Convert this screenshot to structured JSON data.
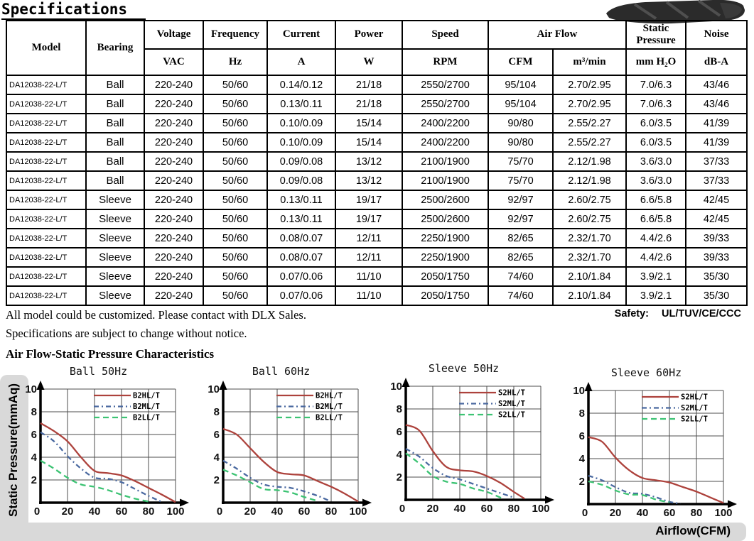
{
  "page": {
    "title": "Specifications",
    "notes": [
      "All model could be customized. Please contact with DLX Sales.",
      "Specifications are subject to change without notice."
    ],
    "safety_label": "Safety:",
    "safety_value": "UL/TUV/CE/CCC",
    "section2_title": "Air Flow-Static Pressure Characteristics",
    "y_axis_label": "Static Pressure(mmAq)",
    "x_axis_label": "Airflow(CFM)"
  },
  "table": {
    "header": {
      "model": "Model",
      "bearing": "Bearing",
      "voltage": "Voltage",
      "voltage_unit": "VAC",
      "frequency": "Frequency",
      "frequency_unit": "Hz",
      "current": "Current",
      "current_unit": "A",
      "power": "Power",
      "power_unit": "W",
      "speed": "Speed",
      "speed_unit": "RPM",
      "airflow": "Air Flow",
      "airflow_unit_cfm": "CFM",
      "airflow_unit_m3": "m³/min",
      "static_pressure": "Static Pressure",
      "static_pressure_unit": "mm H₂O",
      "noise": "Noise",
      "noise_unit": "dB-A"
    },
    "rows": [
      [
        "DA12038-22-L/T",
        "Ball",
        "220-240",
        "50/60",
        "0.14/0.12",
        "21/18",
        "2550/2700",
        "95/104",
        "2.70/2.95",
        "7.0/6.3",
        "43/46"
      ],
      [
        "DA12038-22-L/T",
        "Ball",
        "220-240",
        "50/60",
        "0.13/0.11",
        "21/18",
        "2550/2700",
        "95/104",
        "2.70/2.95",
        "7.0/6.3",
        "43/46"
      ],
      [
        "DA12038-22-L/T",
        "Ball",
        "220-240",
        "50/60",
        "0.10/0.09",
        "15/14",
        "2400/2200",
        "90/80",
        "2.55/2.27",
        "6.0/3.5",
        "41/39"
      ],
      [
        "DA12038-22-L/T",
        "Ball",
        "220-240",
        "50/60",
        "0.10/0.09",
        "15/14",
        "2400/2200",
        "90/80",
        "2.55/2.27",
        "6.0/3.5",
        "41/39"
      ],
      [
        "DA12038-22-L/T",
        "Ball",
        "220-240",
        "50/60",
        "0.09/0.08",
        "13/12",
        "2100/1900",
        "75/70",
        "2.12/1.98",
        "3.6/3.0",
        "37/33"
      ],
      [
        "DA12038-22-L/T",
        "Ball",
        "220-240",
        "50/60",
        "0.09/0.08",
        "13/12",
        "2100/1900",
        "75/70",
        "2.12/1.98",
        "3.6/3.0",
        "37/33"
      ],
      [
        "DA12038-22-L/T",
        "Sleeve",
        "220-240",
        "50/60",
        "0.13/0.11",
        "19/17",
        "2500/2600",
        "92/97",
        "2.60/2.75",
        "6.6/5.8",
        "42/45"
      ],
      [
        "DA12038-22-L/T",
        "Sleeve",
        "220-240",
        "50/60",
        "0.13/0.11",
        "19/17",
        "2500/2600",
        "92/97",
        "2.60/2.75",
        "6.6/5.8",
        "42/45"
      ],
      [
        "DA12038-22-L/T",
        "Sleeve",
        "220-240",
        "50/60",
        "0.08/0.07",
        "12/11",
        "2250/1900",
        "82/65",
        "2.32/1.70",
        "4.4/2.6",
        "39/33"
      ],
      [
        "DA12038-22-L/T",
        "Sleeve",
        "220-240",
        "50/60",
        "0.08/0.07",
        "12/11",
        "2250/1900",
        "82/65",
        "2.32/1.70",
        "4.4/2.6",
        "39/33"
      ],
      [
        "DA12038-22-L/T",
        "Sleeve",
        "220-240",
        "50/60",
        "0.07/0.06",
        "11/10",
        "2050/1750",
        "74/60",
        "2.10/1.84",
        "3.9/2.1",
        "35/30"
      ],
      [
        "DA12038-22-L/T",
        "Sleeve",
        "220-240",
        "50/60",
        "0.07/0.06",
        "11/10",
        "2050/1750",
        "74/60",
        "2.10/1.84",
        "3.9/2.1",
        "35/30"
      ]
    ]
  },
  "chart_data": [
    {
      "type": "line",
      "title": "Ball 50Hz",
      "xlabel": "Airflow(CFM)",
      "ylabel": "Static Pressure(mmAq)",
      "xlim": [
        0,
        100
      ],
      "ylim": [
        0,
        10
      ],
      "xticks": [
        0,
        20,
        40,
        60,
        80,
        100
      ],
      "yticks": [
        0,
        2,
        4,
        6,
        8,
        10
      ],
      "grid": true,
      "legend_position": "top-right",
      "series": [
        {
          "name": "B2HL/T",
          "color": "#ad423c",
          "style": "solid",
          "points": [
            [
              0,
              7.0
            ],
            [
              10,
              6.3
            ],
            [
              20,
              5.4
            ],
            [
              30,
              4.0
            ],
            [
              40,
              2.8
            ],
            [
              50,
              2.6
            ],
            [
              60,
              2.4
            ],
            [
              70,
              1.9
            ],
            [
              80,
              1.3
            ],
            [
              90,
              0.7
            ],
            [
              100,
              0.05
            ]
          ]
        },
        {
          "name": "B2ML/T",
          "color": "#4a69a0",
          "style": "dash-dot",
          "points": [
            [
              0,
              6.2
            ],
            [
              10,
              5.4
            ],
            [
              20,
              4.1
            ],
            [
              30,
              3.0
            ],
            [
              40,
              2.2
            ],
            [
              50,
              2.1
            ],
            [
              60,
              1.8
            ],
            [
              70,
              1.2
            ],
            [
              80,
              0.6
            ],
            [
              90,
              0.05
            ]
          ]
        },
        {
          "name": "B2LL/T",
          "color": "#3cc373",
          "style": "dashed",
          "points": [
            [
              0,
              3.7
            ],
            [
              10,
              3.0
            ],
            [
              20,
              2.2
            ],
            [
              30,
              1.6
            ],
            [
              40,
              1.4
            ],
            [
              50,
              1.1
            ],
            [
              60,
              0.7
            ],
            [
              70,
              0.35
            ],
            [
              80,
              0.1
            ]
          ]
        }
      ]
    },
    {
      "type": "line",
      "title": "Ball 60Hz",
      "xlabel": "Airflow(CFM)",
      "ylabel": "Static Pressure(mmAq)",
      "xlim": [
        0,
        100
      ],
      "ylim": [
        0,
        10
      ],
      "xticks": [
        0,
        20,
        40,
        60,
        80,
        100
      ],
      "yticks": [
        0,
        2,
        4,
        6,
        8,
        10
      ],
      "grid": true,
      "legend_position": "top-right",
      "series": [
        {
          "name": "B2HL/T",
          "color": "#ad423c",
          "style": "solid",
          "points": [
            [
              0,
              6.5
            ],
            [
              10,
              6.0
            ],
            [
              20,
              4.8
            ],
            [
              30,
              3.6
            ],
            [
              40,
              2.7
            ],
            [
              50,
              2.5
            ],
            [
              60,
              2.4
            ],
            [
              70,
              1.9
            ],
            [
              80,
              1.4
            ],
            [
              90,
              0.8
            ],
            [
              100,
              0.1
            ]
          ]
        },
        {
          "name": "B2ML/T",
          "color": "#4a69a0",
          "style": "dash-dot",
          "points": [
            [
              0,
              3.7
            ],
            [
              10,
              3.0
            ],
            [
              20,
              2.2
            ],
            [
              30,
              1.6
            ],
            [
              40,
              1.4
            ],
            [
              50,
              1.3
            ],
            [
              60,
              1.0
            ],
            [
              70,
              0.6
            ],
            [
              78,
              0.2
            ]
          ]
        },
        {
          "name": "B2LL/T",
          "color": "#3cc373",
          "style": "dashed",
          "points": [
            [
              0,
              2.9
            ],
            [
              10,
              2.4
            ],
            [
              20,
              1.8
            ],
            [
              30,
              1.2
            ],
            [
              40,
              1.1
            ],
            [
              50,
              0.9
            ],
            [
              60,
              0.5
            ],
            [
              70,
              0.15
            ]
          ]
        }
      ]
    },
    {
      "type": "line",
      "title": "Sleeve 50Hz",
      "xlabel": "Airflow(CFM)",
      "ylabel": "Static Pressure(mmAq)",
      "xlim": [
        0,
        100
      ],
      "ylim": [
        0,
        10
      ],
      "xticks": [
        0,
        20,
        40,
        60,
        80,
        100
      ],
      "yticks": [
        0,
        2,
        4,
        6,
        8,
        10
      ],
      "grid": true,
      "legend_position": "top-right",
      "series": [
        {
          "name": "S2HL/T",
          "color": "#ad423c",
          "style": "solid",
          "points": [
            [
              0,
              6.6
            ],
            [
              10,
              6.1
            ],
            [
              20,
              4.3
            ],
            [
              30,
              2.9
            ],
            [
              40,
              2.6
            ],
            [
              50,
              2.5
            ],
            [
              60,
              2.1
            ],
            [
              70,
              1.5
            ],
            [
              80,
              0.7
            ],
            [
              88,
              0.1
            ]
          ]
        },
        {
          "name": "S2ML/T",
          "color": "#4a69a0",
          "style": "dash-dot",
          "points": [
            [
              0,
              4.5
            ],
            [
              10,
              3.8
            ],
            [
              20,
              2.8
            ],
            [
              30,
              2.1
            ],
            [
              40,
              1.8
            ],
            [
              50,
              1.4
            ],
            [
              60,
              1.0
            ],
            [
              70,
              0.6
            ],
            [
              80,
              0.2
            ]
          ]
        },
        {
          "name": "S2LL/T",
          "color": "#3cc373",
          "style": "dashed",
          "points": [
            [
              0,
              4.1
            ],
            [
              10,
              3.2
            ],
            [
              20,
              2.1
            ],
            [
              30,
              1.6
            ],
            [
              40,
              1.4
            ],
            [
              50,
              1.0
            ],
            [
              60,
              0.7
            ],
            [
              72,
              0.1
            ]
          ]
        }
      ]
    },
    {
      "type": "line",
      "title": "Sleeve 60Hz",
      "xlabel": "Airflow(CFM)",
      "ylabel": "Static Pressure(mmAq)",
      "xlim": [
        0,
        100
      ],
      "ylim": [
        0,
        10
      ],
      "xticks": [
        0,
        20,
        40,
        60,
        80,
        100
      ],
      "yticks": [
        0,
        2,
        4,
        6,
        8,
        10
      ],
      "grid": true,
      "legend_position": "top-right",
      "series": [
        {
          "name": "S2HL/T",
          "color": "#ad423c",
          "style": "solid",
          "points": [
            [
              0,
              5.9
            ],
            [
              10,
              5.5
            ],
            [
              20,
              4.1
            ],
            [
              30,
              3.0
            ],
            [
              40,
              2.3
            ],
            [
              50,
              2.1
            ],
            [
              60,
              1.9
            ],
            [
              70,
              1.5
            ],
            [
              80,
              1.1
            ],
            [
              90,
              0.6
            ],
            [
              100,
              0.1
            ]
          ]
        },
        {
          "name": "S2ML/T",
          "color": "#4a69a0",
          "style": "dash-dot",
          "points": [
            [
              0,
              2.5
            ],
            [
              10,
              2.1
            ],
            [
              20,
              1.5
            ],
            [
              30,
              1.0
            ],
            [
              40,
              0.9
            ],
            [
              50,
              0.6
            ],
            [
              60,
              0.2
            ],
            [
              68,
              0.05
            ]
          ]
        },
        {
          "name": "S2LL/T",
          "color": "#3cc373",
          "style": "dashed",
          "points": [
            [
              0,
              2.0
            ],
            [
              10,
              1.7
            ],
            [
              20,
              1.2
            ],
            [
              30,
              0.85
            ],
            [
              40,
              0.8
            ],
            [
              50,
              0.4
            ],
            [
              60,
              0.15
            ]
          ]
        }
      ]
    }
  ]
}
